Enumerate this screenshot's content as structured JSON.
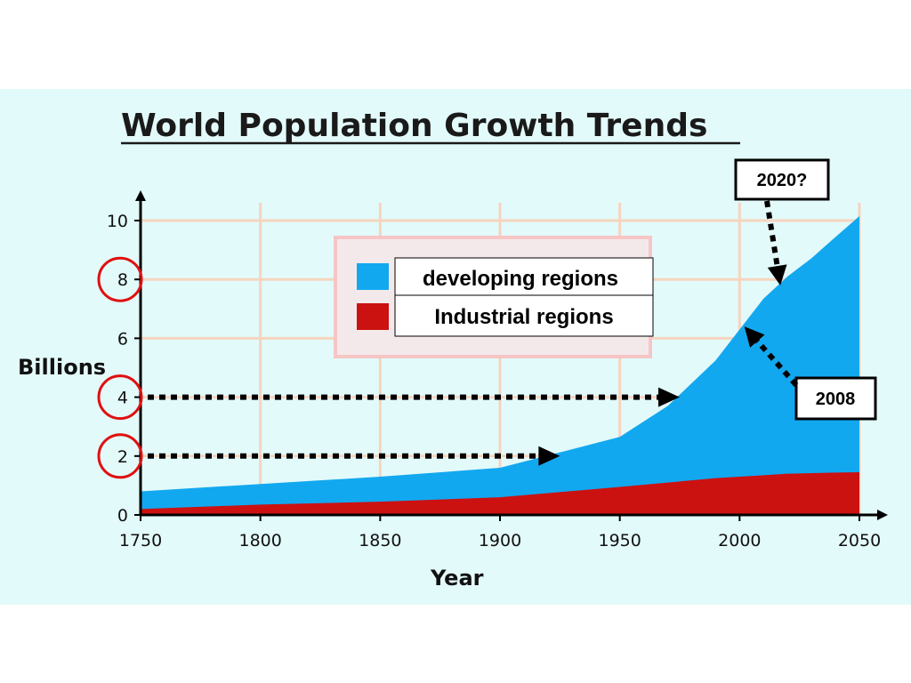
{
  "chart_data": {
    "type": "area",
    "title": "World Population Growth Trends",
    "xlabel": "Year",
    "ylabel": "Billions",
    "xlim": [
      1750,
      2050
    ],
    "ylim": [
      0,
      10
    ],
    "xticks": [
      "1750",
      "1800",
      "1850",
      "1900",
      "1950",
      "2000",
      "2050"
    ],
    "yticks": [
      "0",
      "2",
      "4",
      "6",
      "8",
      "10"
    ],
    "grid": true,
    "stacked": true,
    "legend_position": "top-center",
    "series": [
      {
        "name": "developing regions",
        "color": "#12a8f0",
        "x": [
          1750,
          1800,
          1850,
          1900,
          1950,
          1970,
          1990,
          2000,
          2010,
          2020,
          2030,
          2040,
          2050
        ],
        "values": [
          0.6,
          0.7,
          0.85,
          1.0,
          1.7,
          2.6,
          4.0,
          5.0,
          6.0,
          6.7,
          7.3,
          8.0,
          8.7
        ]
      },
      {
        "name": "Industrial regions",
        "color": "#cc1111",
        "x": [
          1750,
          1800,
          1850,
          1900,
          1950,
          1970,
          1990,
          2000,
          2010,
          2020,
          2030,
          2040,
          2050
        ],
        "values": [
          0.2,
          0.35,
          0.45,
          0.6,
          0.95,
          1.1,
          1.25,
          1.3,
          1.35,
          1.4,
          1.42,
          1.44,
          1.45
        ]
      }
    ],
    "annotations": [
      {
        "text": "2020?",
        "points_to": {
          "x": 2017,
          "y": 7.8
        }
      },
      {
        "text": "2008",
        "points_to": {
          "x": 2002,
          "y": 6.4
        }
      }
    ],
    "highlighted_ticks": [
      "2",
      "4",
      "8"
    ],
    "guide_arrows": [
      {
        "y": 4,
        "to_x": 1975
      },
      {
        "y": 2,
        "to_x": 1925
      }
    ]
  }
}
